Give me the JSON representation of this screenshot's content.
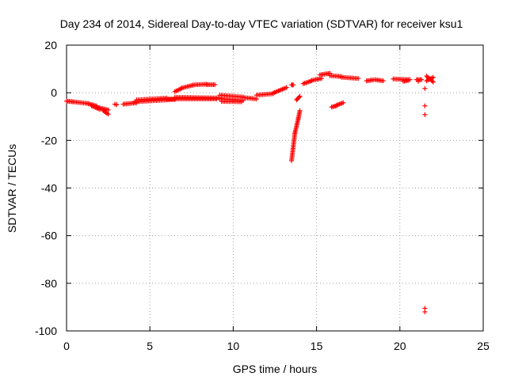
{
  "chart_data": {
    "type": "scatter",
    "title": "Day 234 of 2014, Sidereal Day-to-day VTEC variation (SDTVAR) for receiver ksu1",
    "xlabel": "GPS time / hours",
    "ylabel": "SDTVAR / TECUs",
    "xlim": [
      0,
      25
    ],
    "ylim": [
      -100,
      20
    ],
    "xticks": [
      0,
      5,
      10,
      15,
      20,
      25
    ],
    "yticks": [
      -100,
      -80,
      -60,
      -40,
      -20,
      0,
      20
    ],
    "grid": true,
    "marker": "+",
    "color": "#ff0000",
    "series": [
      {
        "name": "SDTVAR",
        "segments": [
          {
            "x0": 0.0,
            "x1": 0.4,
            "y0": -3.5,
            "y1": -3.8
          },
          {
            "x0": 0.4,
            "x1": 1.3,
            "y0": -3.8,
            "y1": -4.5
          },
          {
            "x0": 1.3,
            "x1": 1.8,
            "y0": -4.6,
            "y1": -5.5
          },
          {
            "x0": 1.5,
            "x1": 2.0,
            "y0": -5.5,
            "y1": -7.0
          },
          {
            "x0": 1.8,
            "x1": 2.5,
            "y0": -6.0,
            "y1": -7.2
          },
          {
            "x0": 2.2,
            "x1": 2.5,
            "y0": -7.5,
            "y1": -9.0
          },
          {
            "x0": 3.0,
            "x1": 3.0,
            "y0": -5.0,
            "y1": -5.0
          },
          {
            "x0": 3.4,
            "x1": 4.2,
            "y0": -4.8,
            "y1": -4.2
          },
          {
            "x0": 4.1,
            "x1": 6.5,
            "y0": -3.8,
            "y1": -2.8
          },
          {
            "x0": 4.2,
            "x1": 6.0,
            "y0": -3.0,
            "y1": -2.2
          },
          {
            "x0": 6.0,
            "x1": 9.0,
            "y0": -2.6,
            "y1": -2.6
          },
          {
            "x0": 6.5,
            "x1": 9.2,
            "y0": -1.9,
            "y1": -2.2
          },
          {
            "x0": 6.5,
            "x1": 6.9,
            "y0": 0.5,
            "y1": 1.8
          },
          {
            "x0": 6.9,
            "x1": 7.6,
            "y0": 2.0,
            "y1": 3.2
          },
          {
            "x0": 7.6,
            "x1": 8.4,
            "y0": 3.3,
            "y1": 3.6
          },
          {
            "x0": 8.4,
            "x1": 8.9,
            "y0": 3.4,
            "y1": 3.4
          },
          {
            "x0": 9.2,
            "x1": 10.6,
            "y0": -1.0,
            "y1": -1.8
          },
          {
            "x0": 9.2,
            "x1": 10.6,
            "y0": -2.5,
            "y1": -3.2
          },
          {
            "x0": 9.3,
            "x1": 10.5,
            "y0": -3.6,
            "y1": -3.8
          },
          {
            "x0": 10.6,
            "x1": 11.4,
            "y0": -2.0,
            "y1": -2.6
          },
          {
            "x0": 11.4,
            "x1": 12.4,
            "y0": -1.0,
            "y1": -0.4
          },
          {
            "x0": 12.4,
            "x1": 13.2,
            "y0": -0.1,
            "y1": 2.2
          },
          {
            "x0": 13.5,
            "x1": 13.6,
            "y0": 3.3,
            "y1": 3.3
          },
          {
            "x0": 13.5,
            "x1": 13.7,
            "y0": -28.5,
            "y1": -17.0
          },
          {
            "x0": 13.7,
            "x1": 13.9,
            "y0": -17.0,
            "y1": -11.0
          },
          {
            "x0": 13.9,
            "x1": 14.0,
            "y0": -11.0,
            "y1": -7.5
          },
          {
            "x0": 13.8,
            "x1": 14.0,
            "y0": -3.0,
            "y1": -1.5
          },
          {
            "x0": 14.2,
            "x1": 14.7,
            "y0": 3.8,
            "y1": 5.0
          },
          {
            "x0": 14.7,
            "x1": 15.3,
            "y0": 5.2,
            "y1": 6.0
          },
          {
            "x0": 15.2,
            "x1": 15.8,
            "y0": 7.5,
            "y1": 8.2
          },
          {
            "x0": 15.8,
            "x1": 16.5,
            "y0": 7.2,
            "y1": 6.8
          },
          {
            "x0": 16.5,
            "x1": 17.5,
            "y0": 6.5,
            "y1": 6.0
          },
          {
            "x0": 15.9,
            "x1": 16.2,
            "y0": -6.0,
            "y1": -5.5
          },
          {
            "x0": 16.2,
            "x1": 16.6,
            "y0": -5.2,
            "y1": -4.2
          },
          {
            "x0": 18.0,
            "x1": 18.4,
            "y0": 5.0,
            "y1": 5.4
          },
          {
            "x0": 18.5,
            "x1": 19.0,
            "y0": 5.5,
            "y1": 5.0
          },
          {
            "x0": 19.6,
            "x1": 20.6,
            "y0": 5.8,
            "y1": 5.5
          },
          {
            "x0": 20.2,
            "x1": 20.5,
            "y0": 4.8,
            "y1": 5.2
          },
          {
            "x0": 21.0,
            "x1": 21.3,
            "y0": 5.5,
            "y1": 5.5
          },
          {
            "x0": 21.6,
            "x1": 22.0,
            "y0": 5.0,
            "y1": 6.5
          },
          {
            "x0": 21.6,
            "x1": 22.0,
            "y0": 7.0,
            "y1": 4.5
          }
        ],
        "points": [
          {
            "x": 2.9,
            "y": -4.8
          },
          {
            "x": 21.1,
            "y": 4.8
          },
          {
            "x": 21.5,
            "y": 1.8
          },
          {
            "x": 21.5,
            "y": -5.5
          },
          {
            "x": 21.5,
            "y": -9.2
          },
          {
            "x": 21.5,
            "y": -90.5
          },
          {
            "x": 21.5,
            "y": -92.0
          }
        ]
      }
    ]
  }
}
